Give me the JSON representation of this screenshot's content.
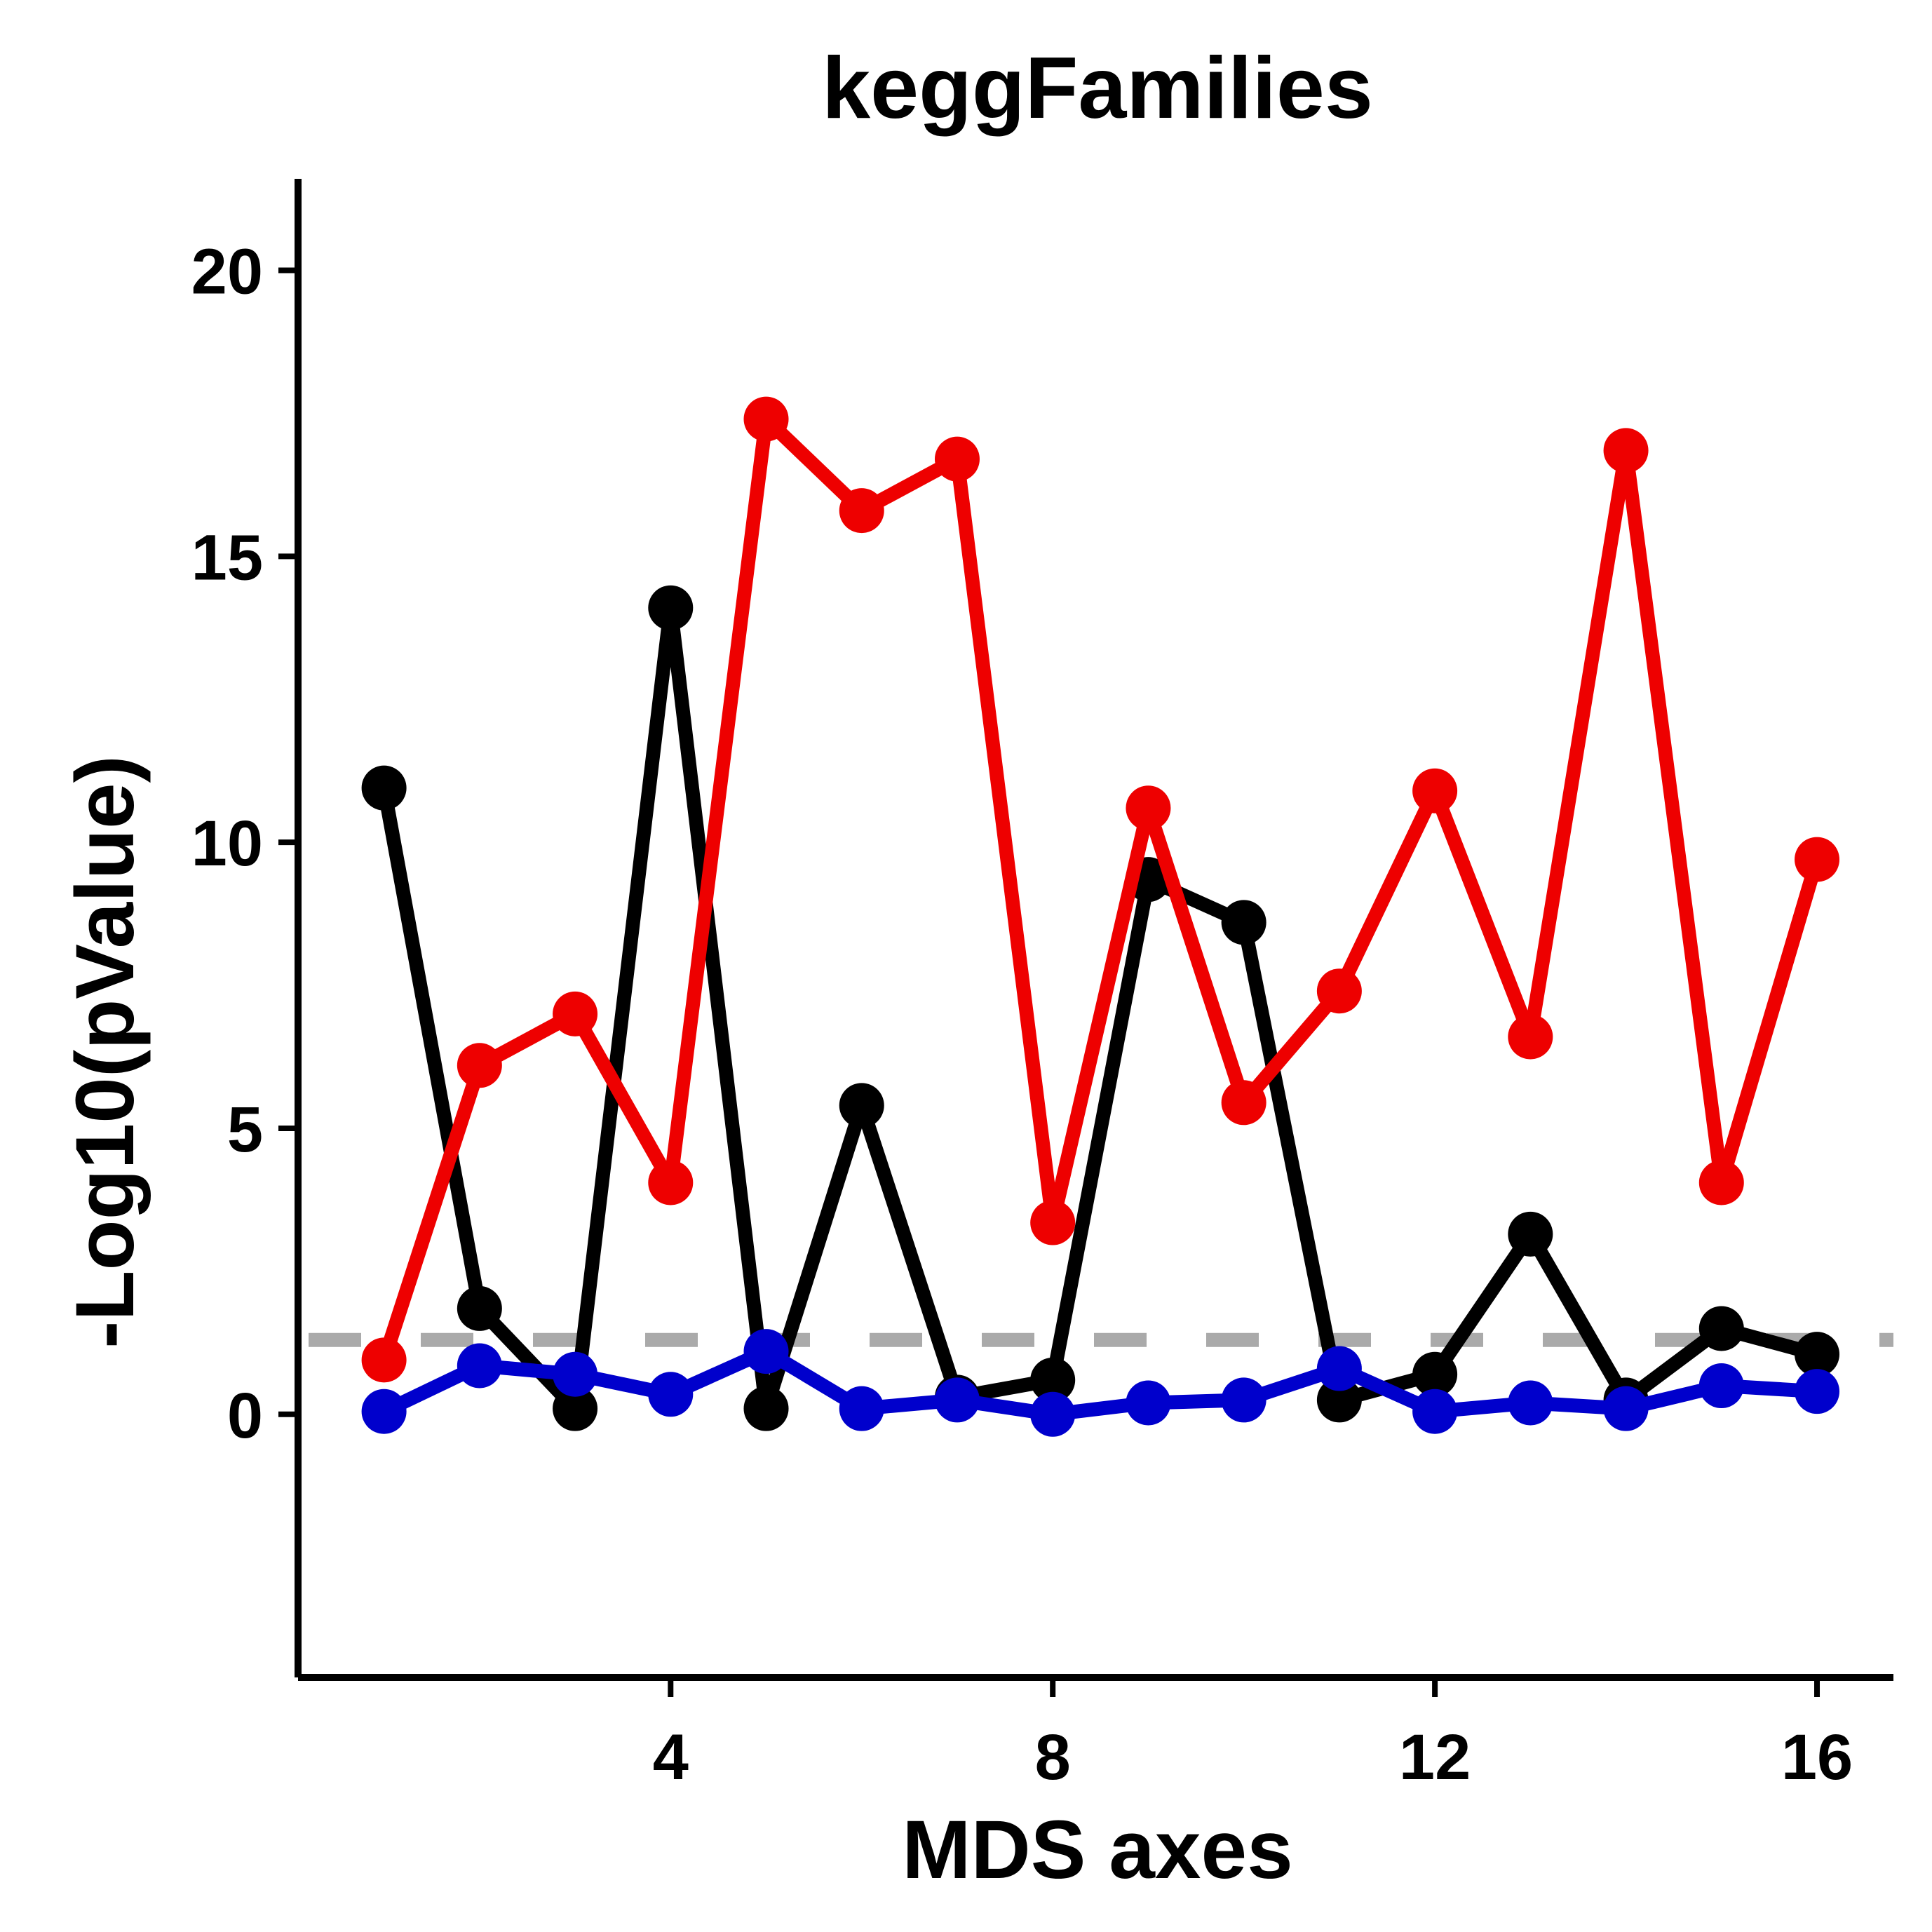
{
  "chart_data": {
    "type": "line",
    "title": "keggFamilies",
    "xlabel": "MDS axes",
    "ylabel": "-Log10(pValue)",
    "x": [
      1,
      2,
      3,
      4,
      5,
      6,
      7,
      8,
      9,
      10,
      11,
      12,
      13,
      14,
      15,
      16
    ],
    "xlim": [
      0.1,
      16.8
    ],
    "ylim": [
      -4.6,
      21.6
    ],
    "xticks": [
      4,
      8,
      12,
      16
    ],
    "yticks": [
      0,
      5,
      10,
      15,
      20
    ],
    "grid": false,
    "reference_line": {
      "y": 1.3,
      "color": "#aaaaaa",
      "style": "dashed"
    },
    "series": [
      {
        "color": "#000000",
        "values": [
          10.95,
          1.85,
          0.1,
          14.1,
          0.1,
          5.4,
          0.3,
          0.6,
          9.35,
          8.6,
          0.25,
          0.7,
          3.15,
          0.25,
          1.5,
          1.05
        ]
      },
      {
        "color": "#ee0000",
        "values": [
          0.95,
          6.1,
          7.0,
          4.05,
          17.4,
          15.8,
          16.7,
          3.35,
          10.6,
          5.45,
          7.4,
          10.9,
          6.6,
          16.85,
          4.05,
          9.7
        ]
      },
      {
        "color": "#0000cc",
        "values": [
          0.05,
          0.85,
          0.7,
          0.35,
          1.1,
          0.1,
          0.25,
          0.0,
          0.2,
          0.25,
          0.8,
          0.05,
          0.2,
          0.1,
          0.5,
          0.4
        ]
      }
    ]
  }
}
